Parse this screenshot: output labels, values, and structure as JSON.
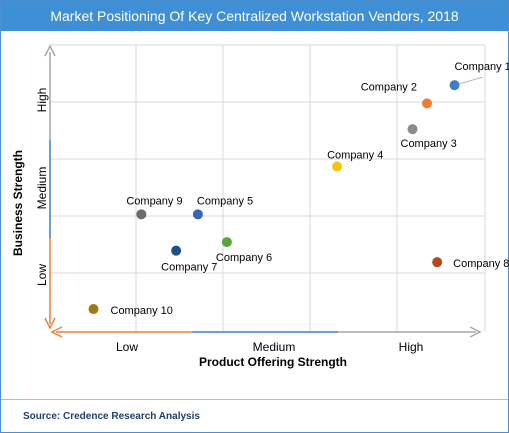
{
  "title": "Market Positioning Of Key Centralized Workstation Vendors, 2018",
  "source": "Source: Credence Research Analysis",
  "colors": {
    "title_bar": "#3f8fd6",
    "axis_orange": "#e8803a",
    "axis_blue": "#3f7ec9",
    "grid": "#d9d9d9"
  },
  "chart_data": {
    "type": "scatter",
    "xlabel": "Product Offering Strength",
    "ylabel": "Business Strength",
    "x_categories": [
      "Low",
      "Medium",
      "High"
    ],
    "y_categories": [
      "Low",
      "Medium",
      "High"
    ],
    "xlim": [
      0,
      3
    ],
    "ylim": [
      0,
      3
    ],
    "grid": true,
    "points": [
      {
        "label": "Company 1",
        "x": 2.79,
        "y": 2.58,
        "color": "#3f7ec9"
      },
      {
        "label": "Company 2",
        "x": 2.6,
        "y": 2.39,
        "color": "#ef7d2d"
      },
      {
        "label": "Company 3",
        "x": 2.5,
        "y": 2.12,
        "color": "#8c8c8c"
      },
      {
        "label": "Company 4",
        "x": 1.98,
        "y": 1.73,
        "color": "#f2c30f"
      },
      {
        "label": "Company 5",
        "x": 1.02,
        "y": 1.23,
        "color": "#3766b8"
      },
      {
        "label": "Company 6",
        "x": 1.22,
        "y": 0.94,
        "color": "#5aa63a"
      },
      {
        "label": "Company 7",
        "x": 0.87,
        "y": 0.85,
        "color": "#1f4e8c"
      },
      {
        "label": "Company 8",
        "x": 2.67,
        "y": 0.73,
        "color": "#b34a1a"
      },
      {
        "label": "Company 9",
        "x": 0.63,
        "y": 1.23,
        "color": "#6b6b6b"
      },
      {
        "label": "Company 10",
        "x": 0.3,
        "y": 0.24,
        "color": "#9c7a14"
      }
    ]
  }
}
